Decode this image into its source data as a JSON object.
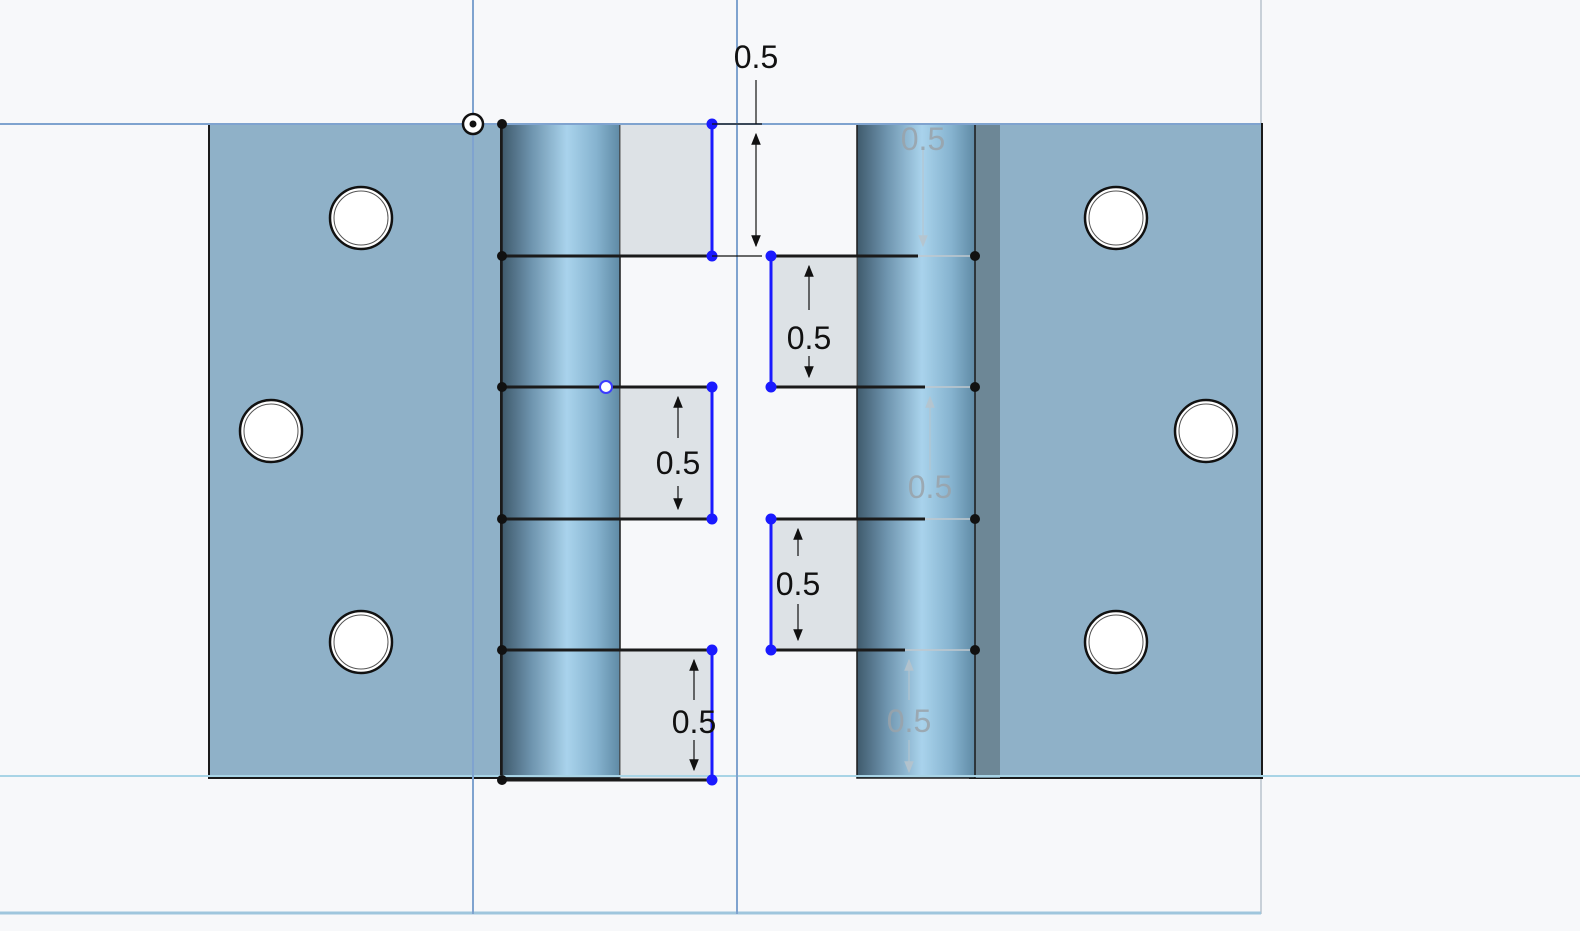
{
  "app": {
    "context": "CAD sketch viewport — hinge model, front view"
  },
  "colors": {
    "background": "#f7f8fa",
    "plate": "#8fb1c8",
    "outline": "#1a1a1a",
    "axis": "#7fa3cf",
    "grid_light": "#a8d4e6",
    "sketch_blue": "#1a1aff",
    "region": "#dde2e6",
    "ghost_text": "#9aa3aa"
  },
  "dimensions": [
    {
      "id": "top_left_gap",
      "value": "0.5",
      "state": "active"
    },
    {
      "id": "right_upper",
      "value": "0.5",
      "state": "active"
    },
    {
      "id": "left_middle",
      "value": "0.5",
      "state": "active"
    },
    {
      "id": "right_lower",
      "value": "0.5",
      "state": "active"
    },
    {
      "id": "left_bottom",
      "value": "0.5",
      "state": "active"
    },
    {
      "id": "hidden_top",
      "value": "0.5",
      "state": "hidden"
    },
    {
      "id": "hidden_middle",
      "value": "0.5",
      "state": "hidden"
    },
    {
      "id": "hidden_bottom",
      "value": "0.5",
      "state": "hidden"
    }
  ],
  "holes": {
    "left_leaf": 3,
    "right_leaf": 3
  }
}
